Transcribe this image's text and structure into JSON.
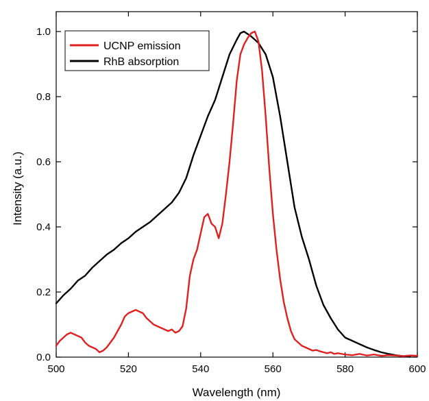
{
  "chart_data": {
    "type": "line",
    "title": "",
    "xlabel": "Wavelength (nm)",
    "ylabel": "Intensity (a.u.)",
    "xlim": [
      500,
      600
    ],
    "ylim": [
      0.0,
      1.0
    ],
    "xticks": [
      500,
      520,
      540,
      560,
      580,
      600
    ],
    "xtick_labels": [
      "500",
      "520",
      "540",
      "560",
      "580",
      "600"
    ],
    "yticks": [
      0.0,
      0.2,
      0.4,
      0.6,
      0.8,
      1.0
    ],
    "ytick_labels": [
      "0.0",
      "0.2",
      "0.4",
      "0.6",
      "0.8",
      "1.0"
    ],
    "grid": false,
    "legend_position": "top-left",
    "series": [
      {
        "name": "UCNP emission",
        "color": "#e02020",
        "x": [
          500,
          501,
          502,
          503,
          504,
          505,
          506,
          507,
          508,
          509,
          510,
          511,
          512,
          513,
          514,
          515,
          516,
          517,
          518,
          519,
          520,
          521,
          522,
          523,
          524,
          525,
          526,
          527,
          528,
          529,
          530,
          531,
          532,
          533,
          534,
          535,
          536,
          537,
          538,
          539,
          540,
          541,
          542,
          543,
          544,
          545,
          546,
          547,
          548,
          549,
          550,
          551,
          552,
          553,
          554,
          555,
          556,
          557,
          558,
          559,
          560,
          561,
          562,
          563,
          564,
          565,
          566,
          567,
          568,
          569,
          570,
          571,
          572,
          573,
          574,
          575,
          576,
          577,
          578,
          579,
          580,
          582,
          584,
          586,
          588,
          590,
          592,
          594,
          596,
          598,
          600
        ],
        "y": [
          0.035,
          0.05,
          0.06,
          0.07,
          0.075,
          0.07,
          0.065,
          0.06,
          0.045,
          0.035,
          0.03,
          0.025,
          0.015,
          0.02,
          0.03,
          0.045,
          0.06,
          0.08,
          0.1,
          0.125,
          0.135,
          0.14,
          0.145,
          0.14,
          0.135,
          0.12,
          0.11,
          0.1,
          0.095,
          0.09,
          0.085,
          0.08,
          0.085,
          0.075,
          0.08,
          0.095,
          0.15,
          0.25,
          0.3,
          0.33,
          0.38,
          0.43,
          0.44,
          0.41,
          0.4,
          0.365,
          0.41,
          0.5,
          0.6,
          0.72,
          0.85,
          0.93,
          0.96,
          0.98,
          0.995,
          1.0,
          0.97,
          0.88,
          0.74,
          0.58,
          0.44,
          0.33,
          0.24,
          0.17,
          0.12,
          0.08,
          0.055,
          0.045,
          0.035,
          0.03,
          0.025,
          0.02,
          0.022,
          0.018,
          0.015,
          0.012,
          0.015,
          0.01,
          0.012,
          0.01,
          0.008,
          0.006,
          0.01,
          0.005,
          0.008,
          0.004,
          0.006,
          0.005,
          0.003,
          0.005,
          0.004
        ]
      },
      {
        "name": "RhB absorption",
        "color": "#000000",
        "x": [
          500,
          502,
          504,
          506,
          508,
          510,
          512,
          514,
          516,
          518,
          520,
          522,
          524,
          526,
          528,
          530,
          532,
          534,
          536,
          538,
          540,
          542,
          544,
          546,
          548,
          550,
          551,
          552,
          554,
          556,
          558,
          560,
          562,
          564,
          566,
          568,
          570,
          572,
          574,
          576,
          578,
          580,
          582,
          584,
          586,
          588,
          590,
          592,
          594,
          596,
          598
        ],
        "y": [
          0.165,
          0.19,
          0.21,
          0.235,
          0.25,
          0.275,
          0.295,
          0.315,
          0.33,
          0.35,
          0.365,
          0.385,
          0.4,
          0.415,
          0.435,
          0.455,
          0.475,
          0.505,
          0.55,
          0.62,
          0.68,
          0.74,
          0.79,
          0.86,
          0.93,
          0.975,
          0.995,
          1.0,
          0.985,
          0.965,
          0.93,
          0.86,
          0.74,
          0.6,
          0.46,
          0.37,
          0.3,
          0.22,
          0.16,
          0.12,
          0.085,
          0.06,
          0.05,
          0.04,
          0.03,
          0.022,
          0.015,
          0.01,
          0.006,
          0.003,
          0.001
        ]
      }
    ]
  }
}
